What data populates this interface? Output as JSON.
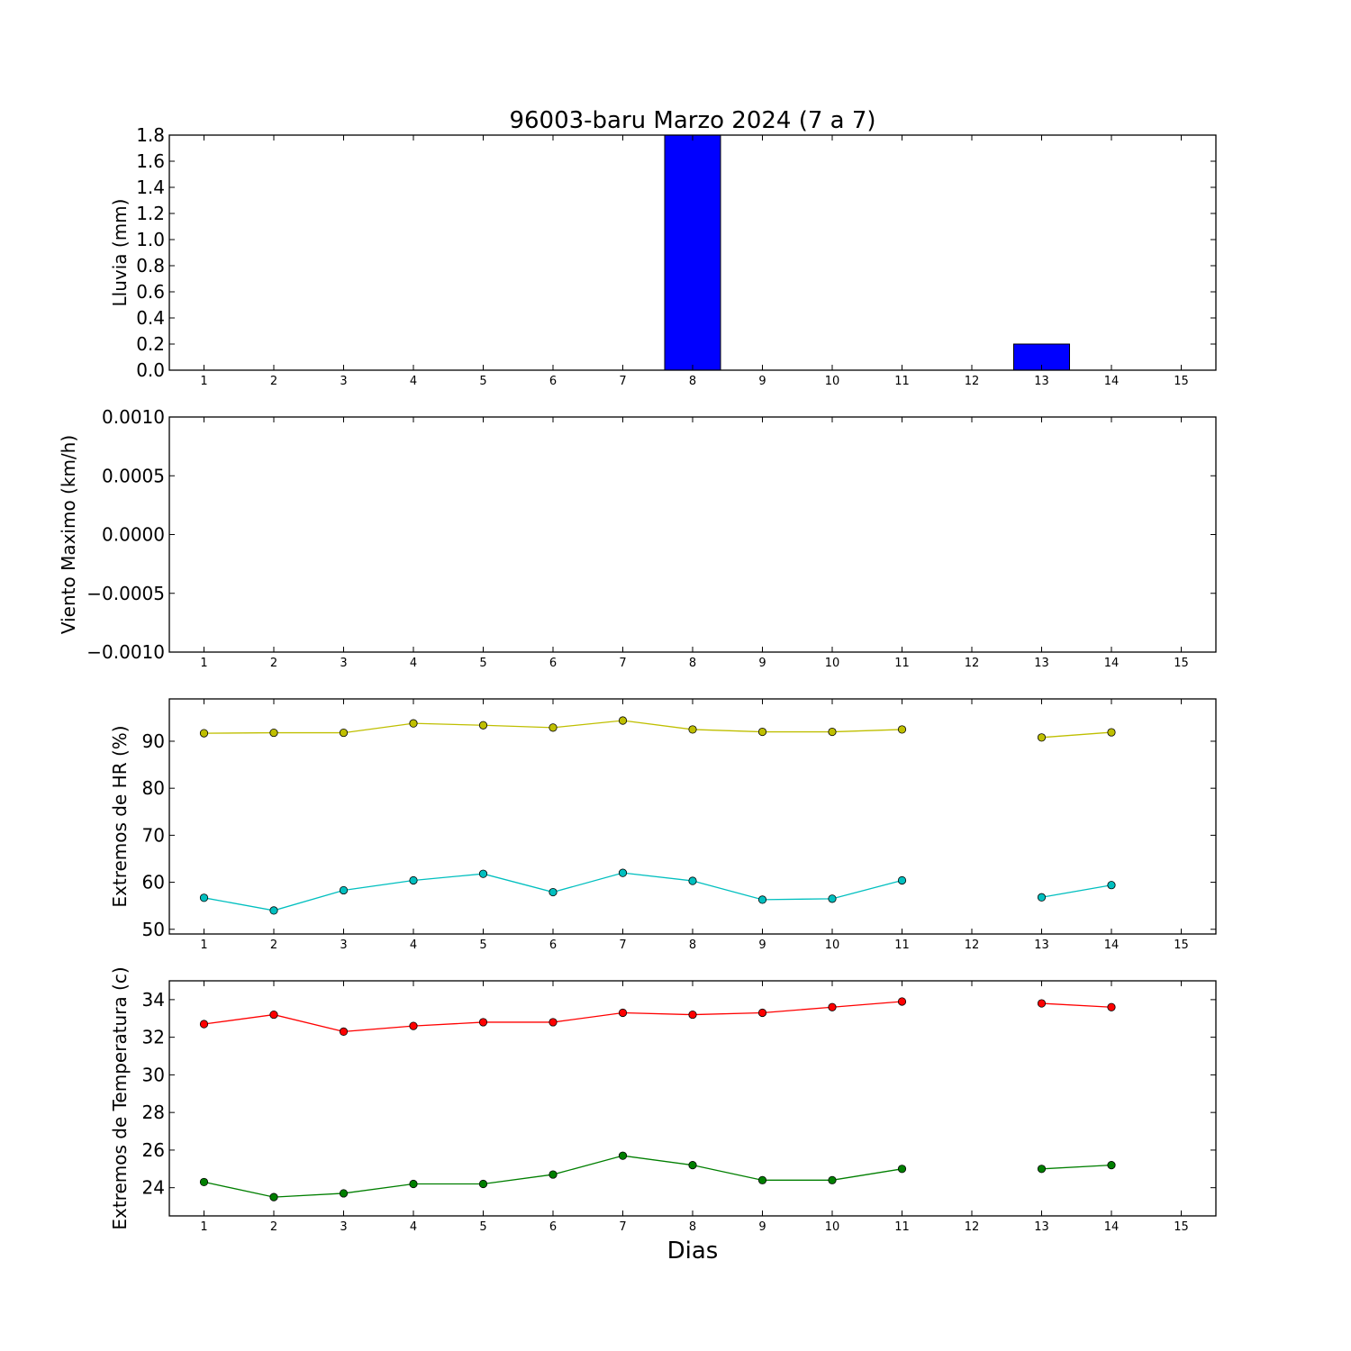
{
  "title": "96003-baru Marzo 2024  (7 a 7)",
  "chart_data": [
    {
      "type": "bar",
      "ylabel": "Lluvia (mm)",
      "ylim": [
        0,
        1.8
      ],
      "yticks": [
        "0.0",
        "0.2",
        "0.4",
        "0.6",
        "0.8",
        "1.0",
        "1.2",
        "1.4",
        "1.6",
        "1.8"
      ],
      "categories": [
        "1",
        "2",
        "3",
        "4",
        "5",
        "6",
        "7",
        "8",
        "9",
        "10",
        "11",
        "12",
        "13",
        "14",
        "15"
      ],
      "values": [
        0,
        0,
        0,
        0,
        0,
        0,
        0,
        1.8,
        0,
        0,
        0,
        null,
        0.2,
        0,
        0
      ],
      "color": "#0000ff"
    },
    {
      "type": "line",
      "ylabel": "Viento Maximo (km/h)",
      "ylim": [
        -0.001,
        0.001
      ],
      "yticks": [
        "−0.0010",
        "−0.0005",
        "0.0000",
        "0.0005",
        "0.0010"
      ],
      "categories": [
        "1",
        "2",
        "3",
        "4",
        "5",
        "6",
        "7",
        "8",
        "9",
        "10",
        "11",
        "12",
        "13",
        "14",
        "15"
      ],
      "series": []
    },
    {
      "type": "line",
      "ylabel": "Extremos de HR (%)",
      "ylim": [
        49,
        99
      ],
      "yticks": [
        "50",
        "60",
        "70",
        "80",
        "90"
      ],
      "categories": [
        "1",
        "2",
        "3",
        "4",
        "5",
        "6",
        "7",
        "8",
        "9",
        "10",
        "11",
        "12",
        "13",
        "14",
        "15"
      ],
      "series": [
        {
          "color": "#bfbf00",
          "values": [
            91.7,
            91.8,
            91.8,
            93.8,
            93.4,
            92.9,
            94.4,
            92.5,
            92.0,
            92.0,
            92.5,
            null,
            90.8,
            91.9,
            null
          ]
        },
        {
          "color": "#00bfbf",
          "values": [
            56.7,
            54.0,
            58.3,
            60.4,
            61.8,
            57.9,
            62.0,
            60.3,
            56.3,
            56.5,
            60.4,
            null,
            56.8,
            59.4,
            null
          ]
        }
      ]
    },
    {
      "type": "line",
      "ylabel": "Extremos de Temperatura (c)",
      "xlabel": "Dias",
      "ylim": [
        22.5,
        35
      ],
      "yticks": [
        "24",
        "26",
        "28",
        "30",
        "32",
        "34"
      ],
      "categories": [
        "1",
        "2",
        "3",
        "4",
        "5",
        "6",
        "7",
        "8",
        "9",
        "10",
        "11",
        "12",
        "13",
        "14",
        "15"
      ],
      "series": [
        {
          "color": "#ff0000",
          "values": [
            32.7,
            33.2,
            32.3,
            32.6,
            32.8,
            32.8,
            33.3,
            33.2,
            33.3,
            33.6,
            33.9,
            null,
            33.8,
            33.6,
            null
          ]
        },
        {
          "color": "#007f00",
          "values": [
            24.3,
            23.5,
            23.7,
            24.2,
            24.2,
            24.7,
            25.7,
            25.2,
            24.4,
            24.4,
            25.0,
            null,
            25.0,
            25.2,
            null
          ]
        }
      ]
    }
  ]
}
